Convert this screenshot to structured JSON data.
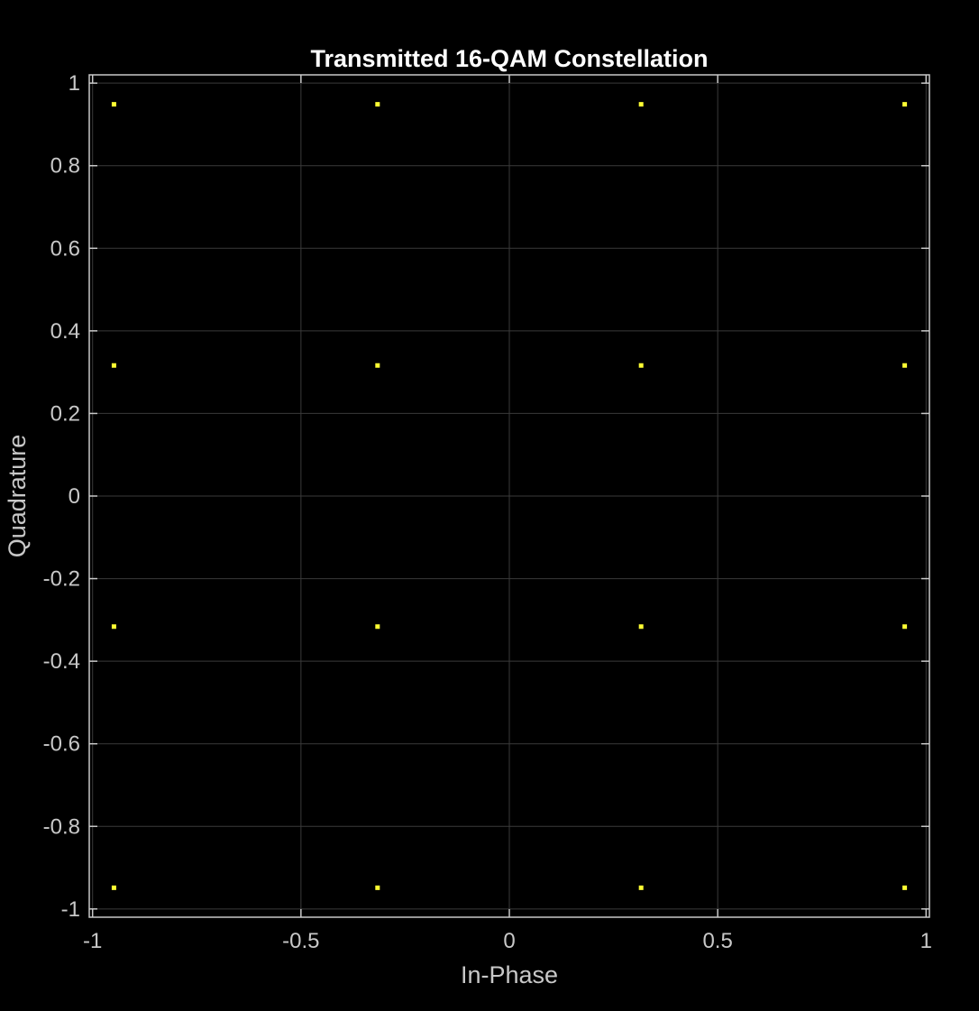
{
  "chart_data": {
    "type": "scatter",
    "title": "Transmitted 16-QAM Constellation",
    "xlabel": "In-Phase",
    "ylabel": "Quadrature",
    "xlim": [
      -1,
      1
    ],
    "ylim": [
      -1,
      1
    ],
    "xticks": [
      -1,
      -0.5,
      0,
      0.5,
      1
    ],
    "xtick_labels": [
      "-1",
      "-0.5",
      "0",
      "0.5",
      "1"
    ],
    "yticks": [
      -1,
      -0.8,
      -0.6,
      -0.4,
      -0.2,
      0,
      0.2,
      0.4,
      0.6,
      0.8,
      1
    ],
    "ytick_labels": [
      "-1",
      "-0.8",
      "-0.6",
      "-0.4",
      "-0.2",
      "0",
      "0.2",
      "0.4",
      "0.6",
      "0.8",
      "1"
    ],
    "grid": true,
    "colors": {
      "background": "#000000",
      "axes_box": "#c8c8c8",
      "grid": "#3a3a3a",
      "marker": "#ffff33",
      "text": "#c8c8c8",
      "title": "#ffffff"
    },
    "series": [
      {
        "x": [
          -0.9487,
          -0.9487,
          -0.9487,
          -0.9487,
          -0.3162,
          -0.3162,
          -0.3162,
          -0.3162,
          0.3162,
          0.3162,
          0.3162,
          0.3162,
          0.9487,
          0.9487,
          0.9487,
          0.9487
        ],
        "y": [
          0.9487,
          0.3162,
          -0.3162,
          -0.9487,
          0.9487,
          0.3162,
          -0.3162,
          -0.9487,
          0.9487,
          0.3162,
          -0.3162,
          -0.9487,
          0.9487,
          0.3162,
          -0.3162,
          -0.9487
        ]
      }
    ]
  }
}
